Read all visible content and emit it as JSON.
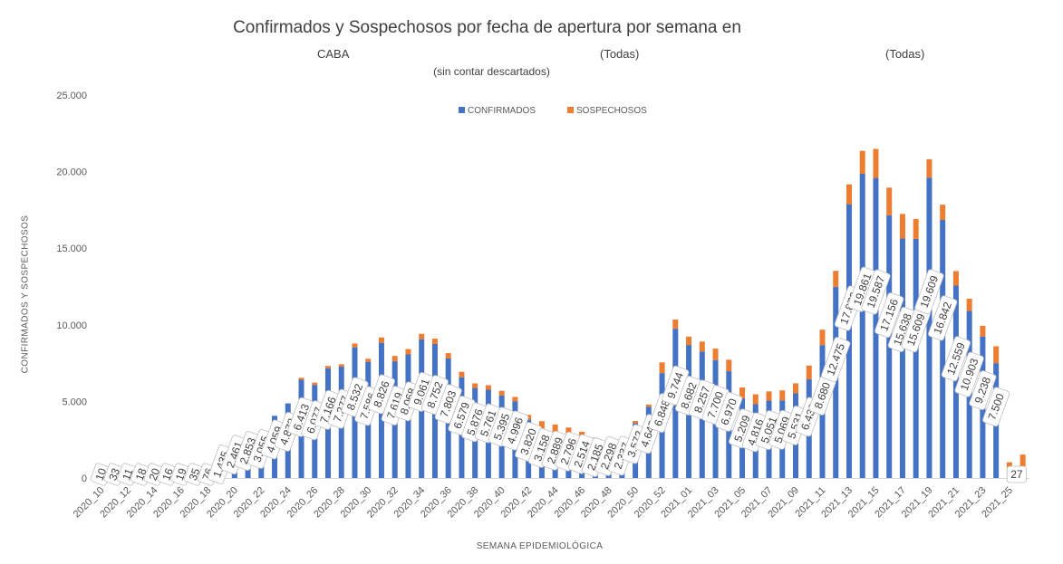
{
  "header": {
    "title": "Confirmados y Sospechosos por fecha de apertura por semana en",
    "subtitle_caba": "CABA",
    "subtitle_todas_1": "(Todas)",
    "subtitle_todas_2": "(Todas)",
    "subtitle_note": "(sin contar descartados)"
  },
  "chart_data": {
    "type": "bar",
    "stacked": true,
    "ylabel": "CONFIRMADOS Y SOSPECHOSOS",
    "xlabel": "SEMANA EPIDEMIOLÓGICA",
    "ylim": [
      0,
      25000
    ],
    "yticks": [
      0,
      5000,
      10000,
      15000,
      20000,
      25000
    ],
    "ytick_labels": [
      "0",
      "5.000",
      "10.000",
      "15.000",
      "20.000",
      "25.000"
    ],
    "legend_position": "top",
    "colors": {
      "confirmados": "#4472C4",
      "sospechosos": "#ED7D31"
    },
    "categories": [
      "2020_10",
      "2020_11",
      "2020_12",
      "2020_13",
      "2020_14",
      "2020_15",
      "2020_16",
      "2020_17",
      "2020_18",
      "2020_19",
      "2020_20",
      "2020_21",
      "2020_22",
      "2020_23",
      "2020_24",
      "2020_25",
      "2020_26",
      "2020_27",
      "2020_28",
      "2020_29",
      "2020_30",
      "2020_31",
      "2020_32",
      "2020_33",
      "2020_34",
      "2020_35",
      "2020_36",
      "2020_37",
      "2020_38",
      "2020_39",
      "2020_40",
      "2020_41",
      "2020_42",
      "2020_43",
      "2020_44",
      "2020_45",
      "2020_46",
      "2020_47",
      "2020_48",
      "2020_49",
      "2020_50",
      "2020_51",
      "2020_52",
      "2020_53",
      "2021_01",
      "2021_02",
      "2021_03",
      "2021_04",
      "2021_05",
      "2021_06",
      "2021_07",
      "2021_08",
      "2021_09",
      "2021_10",
      "2021_11",
      "2021_12",
      "2021_13",
      "2021_14",
      "2021_15",
      "2021_16",
      "2021_17",
      "2021_18",
      "2021_19",
      "2021_20",
      "2021_21",
      "2021_22",
      "2021_23",
      "2021_24",
      "2021_25",
      "2021_26"
    ],
    "xtick_labels": [
      "2020_10",
      "2020_12",
      "2020_14",
      "2020_16",
      "2020_18",
      "2020_20",
      "2020_22",
      "2020_24",
      "2020_26",
      "2020_28",
      "2020_30",
      "2020_32",
      "2020_34",
      "2020_36",
      "2020_38",
      "2020_40",
      "2020_42",
      "2020_44",
      "2020_46",
      "2020_48",
      "2020_50",
      "2020_52",
      "2021_01",
      "2021_03",
      "2021_05",
      "2021_07",
      "2021_09",
      "2021_11",
      "2021_13",
      "2021_15",
      "2021_17",
      "2021_19",
      "2021_21",
      "2021_23",
      "2021_25"
    ],
    "series": [
      {
        "name": "CONFIRMADOS",
        "values": [
          10,
          33,
          11,
          18,
          20,
          16,
          19,
          35,
          76,
          1435,
          2461,
          2853,
          3055,
          4059,
          4872,
          6413,
          6077,
          7166,
          7277,
          8532,
          7586,
          8826,
          7619,
          8068,
          9061,
          8752,
          7803,
          6579,
          5876,
          5761,
          5395,
          4996,
          3820,
          3158,
          2889,
          2796,
          2514,
          2185,
          2298,
          2337,
          3572,
          4645,
          6848,
          9744,
          8682,
          8257,
          7700,
          6970,
          5209,
          4816,
          5051,
          5069,
          5531,
          6439,
          8680,
          12475,
          17872,
          19861,
          19587,
          17156,
          15638,
          15609,
          19609,
          16842,
          12559,
          10903,
          9238,
          7500,
          27,
          27
        ],
        "labels": [
          "10",
          "33",
          "11",
          "18",
          "20",
          "16",
          "19",
          "35",
          "76",
          "1.435",
          "2.461",
          "2.853",
          "3.055",
          "4.059",
          "4.872",
          "6.413",
          "6.077",
          "7.166",
          "7.277",
          "8.532",
          "7.586",
          "8.826",
          "7.619",
          "8.068",
          "9.061",
          "8.752",
          "7.803",
          "6.579",
          "5.876",
          "5.761",
          "5.395",
          "4.996",
          "3.820",
          "3.158",
          "2.889",
          "2.796",
          "2.514",
          "2.185",
          "2.298",
          "2.337",
          "3.572",
          "4.645",
          "6.848",
          "9.744",
          "8.682",
          "8.257",
          "7.700",
          "6.970",
          "5.209",
          "4.816",
          "5.051",
          "5.069",
          "5.531",
          "6.439",
          "8.680",
          "12.475",
          "17.872",
          "19.861",
          "19.587",
          "17.156",
          "15.638",
          "15.609",
          "19.609",
          "16.842",
          "12.559",
          "10.903",
          "9.238",
          "7.500",
          "27",
          ""
        ]
      },
      {
        "name": "SOSPECHOSOS",
        "values": [
          0,
          0,
          0,
          0,
          0,
          0,
          0,
          0,
          0,
          0,
          0,
          0,
          0,
          0,
          0,
          130,
          150,
          150,
          150,
          250,
          200,
          350,
          350,
          350,
          350,
          350,
          350,
          350,
          300,
          300,
          300,
          300,
          300,
          550,
          600,
          500,
          500,
          450,
          300,
          200,
          150,
          150,
          700,
          600,
          550,
          650,
          750,
          750,
          700,
          650,
          600,
          650,
          650,
          900,
          1000,
          1050,
          1300,
          1500,
          1900,
          1800,
          1600,
          1300,
          1200,
          1000,
          950,
          800,
          700,
          1100,
          1000,
          1500
        ]
      }
    ]
  }
}
